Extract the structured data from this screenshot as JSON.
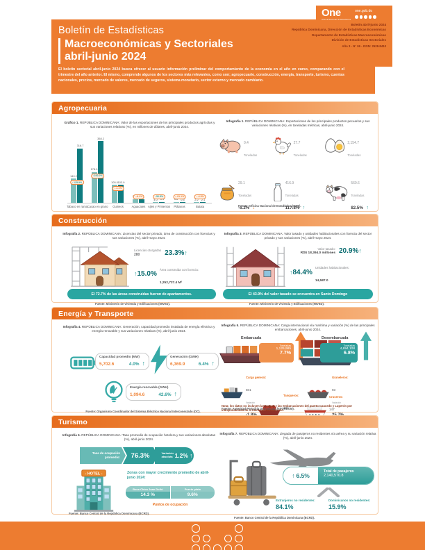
{
  "colors": {
    "orange": "#ED7C30",
    "orange_dark": "#E8701C",
    "teal": "#2E9D99",
    "teal_dark": "#05696D",
    "teal_light": "#7CBFBB",
    "maroon": "#8C2F12",
    "banner_teal": "#2AA6A1"
  },
  "header": {
    "logo": {
      "name": "One",
      "sub": "Oficina Nacional de Estadística",
      "site": "one.gob.do"
    },
    "credits": {
      "line1": "Boletín abril-junio 2024",
      "line2": "República Dominicana, Dirección de Estadísticas Económicas",
      "line3": "Departamento de Estadísticas Macroeconómicas",
      "line4": "División de Estadísticas Sectoriales",
      "edition": "Año 3 - N° 06 - ISSN: 2528-8410"
    },
    "title1": "Boletín de Estadísticas",
    "title2": "Macroeconómicas y Sectoriales",
    "title3": "abril-junio 2024",
    "intro": "El boletín sectorial abril-junio 2024 busca ofrecer al usuario información preliminar del comportamiento de la economía en el año en curso, comparando con el trimestre del año anterior. El mismo, comprende algunos de los sectores más relevantes, como son; agropecuario, construcción, energía, transporte, turismo, cuentas nacionales, precios, mercado de valores, mercado de seguros, sistema monetario, sector externo y mercado cambiario."
  },
  "chart_data": {
    "type": "bar",
    "title": "Gráfico 1. REPÚBLICA DOMINICANA: Valor de las exportaciones de los principales productos agrícolas y sus variaciones relativas (%), en millones de dólares, abril-junio 2024.",
    "categories": [
      "Tabaco en rama",
      "Cacao en grano",
      "Guineos",
      "Aguacates",
      "Ajíes y Pimientos",
      "Plátanos",
      "Batata"
    ],
    "series": [
      {
        "name": "Año 2023",
        "color": "#7CBFBB",
        "values": [
          140.2,
          178.9,
          105.0,
          20.8,
          4.0,
          5.6,
          2.2
        ],
        "value_labels": [
          "140.2",
          "178.9",
          "105.0",
          "20.8",
          "4.0",
          "5.6",
          "2.2"
        ]
      },
      {
        "name": "Año 2024",
        "color": "#0F7C80",
        "values": [
          316.7,
          358.2,
          103.9,
          19.1,
          6.1,
          0.5,
          2.1
        ],
        "value_labels": [
          "316.7",
          "358.2",
          "103.9",
          "19.1",
          "6.1",
          "0.5",
          "2.1"
        ]
      }
    ],
    "variations": [
      {
        "pct": "125.9%",
        "arrow": "↑",
        "dir": "up"
      },
      {
        "pct": "100.2%",
        "arrow": "↑",
        "dir": "up"
      },
      {
        "pct": "-1.1%",
        "arrow": "↓",
        "dir": "down"
      },
      {
        "pct": "-8.2%",
        "arrow": "↓",
        "dir": "down"
      },
      {
        "pct": "52.5%",
        "arrow": "↑",
        "dir": "up"
      },
      {
        "pct": "-91.1%",
        "arrow": "↓",
        "dir": "down"
      },
      {
        "pct": "-4.5%",
        "arrow": "↓",
        "dir": "down"
      }
    ],
    "ylim": [
      0,
      380
    ],
    "legend_position": "bottom",
    "grid": false
  },
  "agropecuaria": {
    "section_title": "Agropecuaria",
    "grafico1": {
      "title": "Gráfico 1.",
      "caption": "REPÚBLICA DOMINICANA: Valor de las exportaciones de los principales productos agrícolas y sus variaciones relativas (%), en millones de dólares, abril-junio 2024.",
      "fuente": "Fuente: Oficina Nacional de Estadística (ONE)."
    },
    "infografia1": {
      "title": "Infografía 1.",
      "caption": "REPÚBLICA DOMINICANA: Exportaciones de los principales productos pecuarios y sus variaciones relativas (%), en toneladas métricas, abril-junio 2024.",
      "items": [
        {
          "icon": "pig-icon",
          "value": "0.4",
          "unit": "Toneladas",
          "pct": "",
          "arrow": "",
          "dir": ""
        },
        {
          "icon": "chicken-icon",
          "value": "27.7",
          "unit": "Toneladas",
          "pct": "",
          "arrow": "",
          "dir": ""
        },
        {
          "icon": "egg-icon",
          "value": "2,154.7",
          "unit": "Toneladas",
          "pct": "",
          "arrow": "",
          "dir": ""
        },
        {
          "icon": "honey-icon",
          "value": "29.1",
          "unit": "Toneladas",
          "pct": "-5.2%",
          "arrow": "↓",
          "dir": "down"
        },
        {
          "icon": "milk-icon",
          "value": "416.9",
          "unit": "Toneladas",
          "pct": "117.8%",
          "arrow": "↑",
          "dir": "up"
        },
        {
          "icon": "cow-icon",
          "value": "560.6",
          "unit": "Toneladas",
          "pct": "82.5%",
          "arrow": "↑",
          "dir": "up"
        }
      ],
      "fuente": "Fuente: Oficina Nacional de Estadística (ONE)."
    }
  },
  "construccion": {
    "section_title": "Construcción",
    "infografia2": {
      "title": "Infografía 2.",
      "caption": "REPÚBLICA DOMINICANA: Licencias del sector privado, área de construcción con licencias y sus variaciones (%), abril-mayo 2024.",
      "licencias_label": "Licencias otorgadas",
      "licencias_value": "280",
      "licencias_pct": "23.3%",
      "licencias_arrow": "↑",
      "area_arrow": "↑",
      "area_pct": "15.0%",
      "area_label": "Área construida con licencia:",
      "area_value": "1,252,737.4 M²",
      "banner": "El 72.7% de las áreas construidas fueron de apartamentos.",
      "fuente": "Fuente: Ministerio de Vivienda y Edificaciones (MIVED)."
    },
    "infografia3": {
      "title": "Infografía 3.",
      "caption": "REPÚBLICA DOMINICANA: Valor tasado y unidades habitacionales con licencia del sector privado y sus variaciones (%), abril-mayo 2024.",
      "valor_label": "Valor tasado:",
      "valor_value": "RD$ 18,394.0 millones",
      "valor_pct": "20.9%",
      "valor_arrow": "↑",
      "unidades_arrow": "↑",
      "unidades_pct": "84.4%",
      "unidades_label": "Unidades habitacionales:",
      "unidades_value": "14,587.0",
      "banner": "El 43.9% del valor tasado se encuentra en Santo Domingo",
      "fuente": "Fuente: Ministerio de Vivienda y Edificaciones (MIVED)."
    }
  },
  "energia": {
    "section_title": "Energía y Transporte",
    "infografia4": {
      "title": "Infografía 4.",
      "caption": "REPÚBLICA DOMINICANA: Generación, capacidad promedio instalada de energía eléctrica y energía renovable y sus variaciones relativas (%), abril-junio 2024.",
      "cards": [
        {
          "label": "Capacidad promedio (MW)",
          "value": "5,702.6",
          "pct": "4.0%",
          "arrow": "↑"
        },
        {
          "label": "Generación (GWH)",
          "value": "6,369.9",
          "pct": "6.4%",
          "arrow": "↑"
        },
        {
          "label": "Energía renovable (GWH)",
          "value": "1,094.6",
          "pct": "42.6%",
          "arrow": "↑"
        }
      ],
      "fuente": "Fuente: Organismo Coordinador del Sistema Eléctrico Nacional Interconectado (OC)."
    },
    "infografia5": {
      "title": "Infografía 5.",
      "caption": "REPÚBLICA DOMINICANA: Carga internacional vía marítima y variación (%) de las principales embarcaciones, abril-junio 2024.",
      "embarcada": {
        "label": "Embarcada",
        "unit": "Toneladas",
        "value": "1,125,985",
        "pct": "7.7%"
      },
      "desembarcada": {
        "label": "Desembarcada",
        "unit": "Toneladas",
        "value": "4,894,108",
        "pct": "6.8%"
      },
      "vessels": [
        {
          "label": "Carga general:",
          "value": "501",
          "var_label": "Variación",
          "pct": "-1.8%"
        },
        {
          "label": "Graneleros:",
          "value": "93",
          "var_label": "Variación",
          "pct": "25.7%"
        },
        {
          "label": "Tanqueros:",
          "value": "184",
          "var_label": "Variación",
          "pct": "0.0%"
        },
        {
          "label": "Cruceros:",
          "value": "147",
          "var_label": "Variación",
          "pct": "27.8%"
        }
      ],
      "nota": "Nota: los datos no incluyen las cargas y las embarcaciones del puerto Caucedo y Luperón por indisponibilidad de la fuente en este período.",
      "fuente": "Fuente: Autoridad Portuaria Dominicana (APORDOM)."
    }
  },
  "turismo": {
    "section_title": "Turismo",
    "infografia6": {
      "title": "Infografía 6.",
      "caption": "REPÚBLICA DOMINICANA: Tasa promedio de ocupación hotelera y sus variaciones absolutas (%), abril-junio 2024.",
      "tasa_label": "Tasa de ocupación promedio:",
      "tasa_value": "76.3%",
      "var_label": "Variación absoluta",
      "var_value": "1.2%",
      "var_arrow": "↑",
      "hotel_sign": "- HOTEL -",
      "zonas_title": "Zonas con mayor crecimiento promedio de abril-junio 2024:",
      "zona1_name": "Boca Chica Juan Dolió",
      "zona1_value": "14.3 %",
      "zona2_name": "Puerto plata",
      "zona2_value": "9.6%",
      "puntos": "Puntos de ocupación",
      "fuente": "Fuente: Banco Central de la República Dominicana (BCRD)."
    },
    "infografia7": {
      "title": "Infografía 7.",
      "caption": "REPÚBLICA DOMINICANA: Llegada de pasajeros no residentes vía aérea y su variación relativa (%), abril-junio 2024.",
      "pct": "6.5%",
      "pct_arrow": "↑",
      "total_label": "Total de pasajeros",
      "total_value": "2,140,570.8",
      "ext_label": "Extranjeros no residentes:",
      "ext_value": "84.1%",
      "dom_label": "Dominicanos no residentes:",
      "dom_value": "15.9%",
      "fuente": "Fuente: Banco Central de la República Dominicana (BCRD)."
    }
  }
}
